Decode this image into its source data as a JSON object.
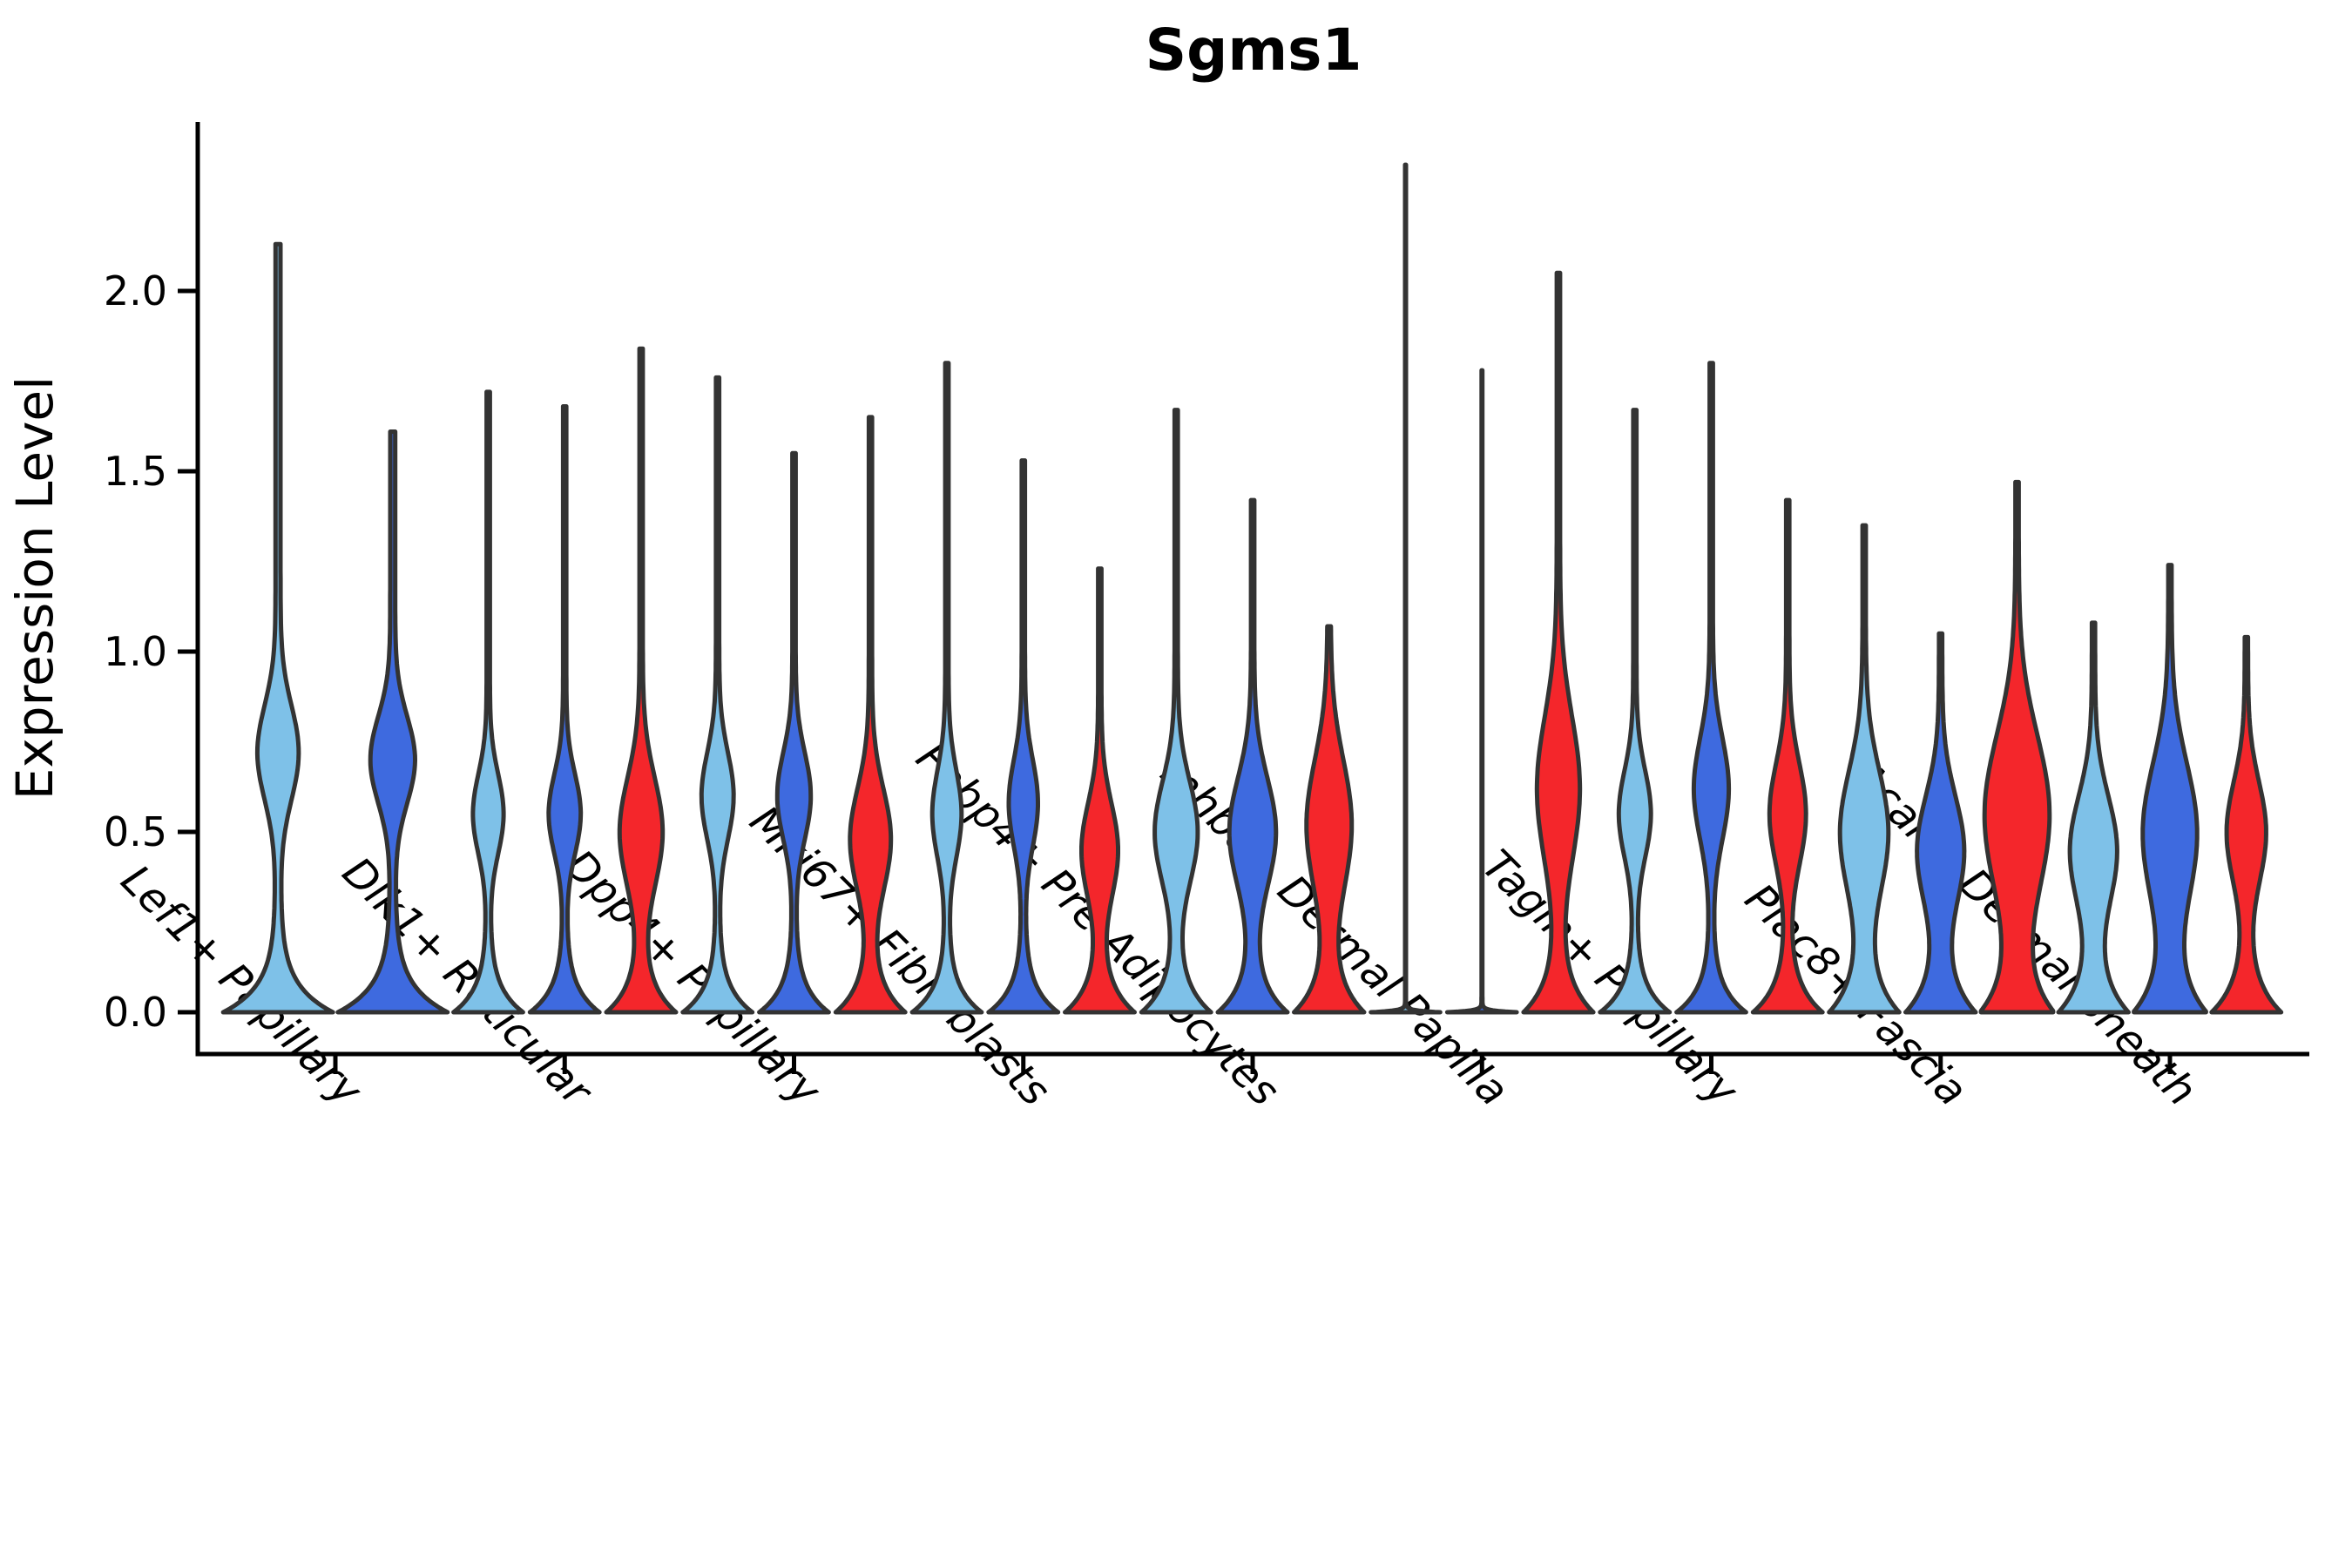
{
  "title": {
    "text": "Sgms1"
  },
  "y_axis": {
    "label": "Expression Level",
    "ticks": [
      0.0,
      0.5,
      1.0,
      1.5,
      2.0
    ],
    "tick_labels": [
      "0.0",
      "0.5",
      "1.0",
      "1.5",
      "2.0"
    ]
  },
  "colors": {
    "light_blue": "#7EC1E8",
    "royal_blue": "#3E6ADF",
    "red": "#F4262B",
    "violin_outline": "#333333",
    "axis": "#000000"
  },
  "chart_data": {
    "type": "violin",
    "title": "Sgms1",
    "xlabel": "",
    "ylabel": "Expression Level",
    "ylim": [
      0,
      2.47
    ],
    "grid": false,
    "legend": "none",
    "series": [
      "light_blue",
      "royal_blue",
      "red"
    ],
    "series_colors": [
      "#7EC1E8",
      "#3E6ADF",
      "#F4262B"
    ],
    "categories": [
      "Lef1+ Papillary",
      "Dlk1+ Reticular",
      "Dpp4+ Papillary",
      "Mki67+ Fibroblasts",
      "Fabp4+ Pre-Adipocytes",
      "Inhba+ Dermal Papilla",
      "Tagln+ Papillary",
      "Plac8+ Fascia",
      "Acan+ Dermal Sheath"
    ],
    "groups": [
      {
        "category": "Lef1+ Papillary",
        "violins": [
          {
            "series": 0,
            "max_expression": 2.13,
            "mode_center": 0.72,
            "mode_spread": 0.13,
            "mode_width": 0.33,
            "base_width": 0.95,
            "base_decay": 0.075,
            "tail_width": 0.045,
            "flat": false
          },
          {
            "series": 1,
            "max_expression": 1.61,
            "mode_center": 0.7,
            "mode_spread": 0.12,
            "mode_width": 0.36,
            "base_width": 0.95,
            "base_decay": 0.075,
            "tail_width": 0.045,
            "flat": false
          }
        ]
      },
      {
        "category": "Dlk1+ Reticular",
        "violins": [
          {
            "series": 0,
            "max_expression": 1.72,
            "mode_center": 0.55,
            "mode_spread": 0.11,
            "mode_width": 0.38,
            "base_width": 0.92,
            "base_decay": 0.07,
            "tail_width": 0.045,
            "flat": false
          },
          {
            "series": 1,
            "max_expression": 1.68,
            "mode_center": 0.55,
            "mode_spread": 0.11,
            "mode_width": 0.4,
            "base_width": 0.92,
            "base_decay": 0.07,
            "tail_width": 0.045,
            "flat": false
          },
          {
            "series": 2,
            "max_expression": 1.84,
            "mode_center": 0.5,
            "mode_spread": 0.15,
            "mode_width": 0.55,
            "base_width": 0.92,
            "base_decay": 0.08,
            "tail_width": 0.045,
            "flat": false
          }
        ]
      },
      {
        "category": "Dpp4+ Papillary",
        "violins": [
          {
            "series": 0,
            "max_expression": 1.76,
            "mode_center": 0.6,
            "mode_spread": 0.12,
            "mode_width": 0.4,
            "base_width": 0.92,
            "base_decay": 0.07,
            "tail_width": 0.045,
            "flat": false
          },
          {
            "series": 1,
            "max_expression": 1.55,
            "mode_center": 0.6,
            "mode_spread": 0.12,
            "mode_width": 0.42,
            "base_width": 0.92,
            "base_decay": 0.07,
            "tail_width": 0.045,
            "flat": false
          },
          {
            "series": 2,
            "max_expression": 1.65,
            "mode_center": 0.48,
            "mode_spread": 0.14,
            "mode_width": 0.52,
            "base_width": 0.92,
            "base_decay": 0.08,
            "tail_width": 0.045,
            "flat": false
          }
        ]
      },
      {
        "category": "Mki67+ Fibroblasts",
        "violins": [
          {
            "series": 0,
            "max_expression": 1.8,
            "mode_center": 0.55,
            "mode_spread": 0.12,
            "mode_width": 0.36,
            "base_width": 0.92,
            "base_decay": 0.07,
            "tail_width": 0.045,
            "flat": false
          },
          {
            "series": 1,
            "max_expression": 1.53,
            "mode_center": 0.58,
            "mode_spread": 0.12,
            "mode_width": 0.36,
            "base_width": 0.92,
            "base_decay": 0.07,
            "tail_width": 0.045,
            "flat": false
          },
          {
            "series": 2,
            "max_expression": 1.23,
            "mode_center": 0.45,
            "mode_spread": 0.13,
            "mode_width": 0.46,
            "base_width": 0.92,
            "base_decay": 0.08,
            "tail_width": 0.045,
            "flat": false
          }
        ]
      },
      {
        "category": "Fabp4+ Pre-Adipocytes",
        "violins": [
          {
            "series": 0,
            "max_expression": 1.67,
            "mode_center": 0.5,
            "mode_spread": 0.14,
            "mode_width": 0.55,
            "base_width": 0.92,
            "base_decay": 0.08,
            "tail_width": 0.045,
            "flat": false
          },
          {
            "series": 1,
            "max_expression": 1.42,
            "mode_center": 0.5,
            "mode_spread": 0.15,
            "mode_width": 0.6,
            "base_width": 0.92,
            "base_decay": 0.08,
            "tail_width": 0.045,
            "flat": false
          },
          {
            "series": 2,
            "max_expression": 1.07,
            "mode_center": 0.52,
            "mode_spread": 0.18,
            "mode_width": 0.58,
            "base_width": 0.92,
            "base_decay": 0.09,
            "tail_width": 0.045,
            "flat": false
          }
        ]
      },
      {
        "category": "Inhba+ Dermal Papilla",
        "violins": [
          {
            "series": 0,
            "max_expression": 2.35,
            "mode_center": 0,
            "mode_spread": 1,
            "mode_width": 0,
            "base_width": 0.95,
            "base_decay": 0.0045,
            "tail_width": 0.012,
            "flat": true
          },
          {
            "series": 1,
            "max_expression": 1.78,
            "mode_center": 0,
            "mode_spread": 1,
            "mode_width": 0,
            "base_width": 0.95,
            "base_decay": 0.0045,
            "tail_width": 0.012,
            "flat": true
          },
          {
            "series": 2,
            "max_expression": 2.05,
            "mode_center": 0.62,
            "mode_spread": 0.2,
            "mode_width": 0.55,
            "base_width": 0.92,
            "base_decay": 0.09,
            "tail_width": 0.045,
            "flat": false
          }
        ]
      },
      {
        "category": "Tagln+ Papillary",
        "violins": [
          {
            "series": 0,
            "max_expression": 1.67,
            "mode_center": 0.55,
            "mode_spread": 0.12,
            "mode_width": 0.4,
            "base_width": 0.92,
            "base_decay": 0.07,
            "tail_width": 0.045,
            "flat": false
          },
          {
            "series": 1,
            "max_expression": 1.8,
            "mode_center": 0.62,
            "mode_spread": 0.14,
            "mode_width": 0.44,
            "base_width": 0.92,
            "base_decay": 0.07,
            "tail_width": 0.045,
            "flat": false
          },
          {
            "series": 2,
            "max_expression": 1.42,
            "mode_center": 0.55,
            "mode_spread": 0.14,
            "mode_width": 0.46,
            "base_width": 0.92,
            "base_decay": 0.08,
            "tail_width": 0.045,
            "flat": false
          }
        ]
      },
      {
        "category": "Plac8+ Fascia",
        "violins": [
          {
            "series": 0,
            "max_expression": 1.35,
            "mode_center": 0.5,
            "mode_spread": 0.17,
            "mode_width": 0.62,
            "base_width": 0.92,
            "base_decay": 0.1,
            "tail_width": 0.045,
            "flat": false
          },
          {
            "series": 1,
            "max_expression": 1.05,
            "mode_center": 0.45,
            "mode_spread": 0.15,
            "mode_width": 0.6,
            "base_width": 0.92,
            "base_decay": 0.1,
            "tail_width": 0.045,
            "flat": false
          },
          {
            "series": 2,
            "max_expression": 1.47,
            "mode_center": 0.55,
            "mode_spread": 0.22,
            "mode_width": 0.85,
            "base_width": 0.95,
            "base_decay": 0.11,
            "tail_width": 0.045,
            "flat": false
          }
        ]
      },
      {
        "category": "Acan+ Dermal Sheath",
        "violins": [
          {
            "series": 0,
            "max_expression": 1.08,
            "mode_center": 0.45,
            "mode_spread": 0.15,
            "mode_width": 0.6,
            "base_width": 0.92,
            "base_decay": 0.1,
            "tail_width": 0.045,
            "flat": false
          },
          {
            "series": 1,
            "max_expression": 1.24,
            "mode_center": 0.5,
            "mode_spread": 0.19,
            "mode_width": 0.7,
            "base_width": 0.95,
            "base_decay": 0.11,
            "tail_width": 0.045,
            "flat": false
          },
          {
            "series": 2,
            "max_expression": 1.04,
            "mode_center": 0.5,
            "mode_spread": 0.14,
            "mode_width": 0.5,
            "base_width": 0.92,
            "base_decay": 0.09,
            "tail_width": 0.045,
            "flat": false
          }
        ]
      }
    ]
  }
}
